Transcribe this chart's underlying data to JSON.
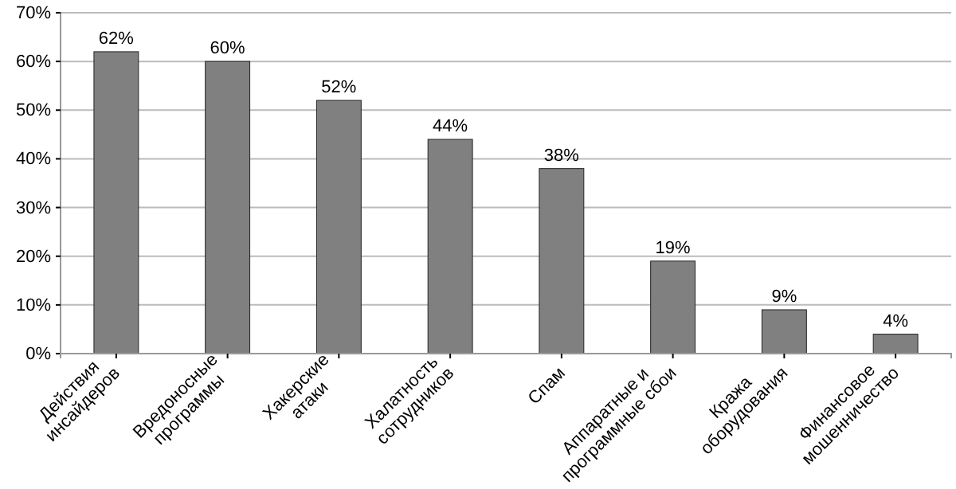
{
  "chart_data": {
    "type": "bar",
    "categories": [
      "Действия\nинсайдеров",
      "Вредоносные\nпрограммы",
      "Хакерские\nатаки",
      "Халатность\nсотрудников",
      "Спам",
      "Аппаратные и\nпрограммные сбои",
      "Кража\nоборудования",
      "Финансовое\nмошенничество"
    ],
    "values": [
      62,
      60,
      52,
      44,
      38,
      19,
      9,
      4
    ],
    "value_labels": [
      "62%",
      "60%",
      "52%",
      "44%",
      "38%",
      "19%",
      "9%",
      "4%"
    ],
    "color": "#808080",
    "ylim": [
      0,
      70
    ],
    "yticks": [
      {
        "value": 0,
        "label": "0%"
      },
      {
        "value": 10,
        "label": "10%"
      },
      {
        "value": 20,
        "label": "20%"
      },
      {
        "value": 30,
        "label": "30%"
      },
      {
        "value": 40,
        "label": "40%"
      },
      {
        "value": 50,
        "label": "50%"
      },
      {
        "value": 60,
        "label": "60%"
      },
      {
        "value": 70,
        "label": "70%"
      }
    ],
    "grid": "y"
  }
}
